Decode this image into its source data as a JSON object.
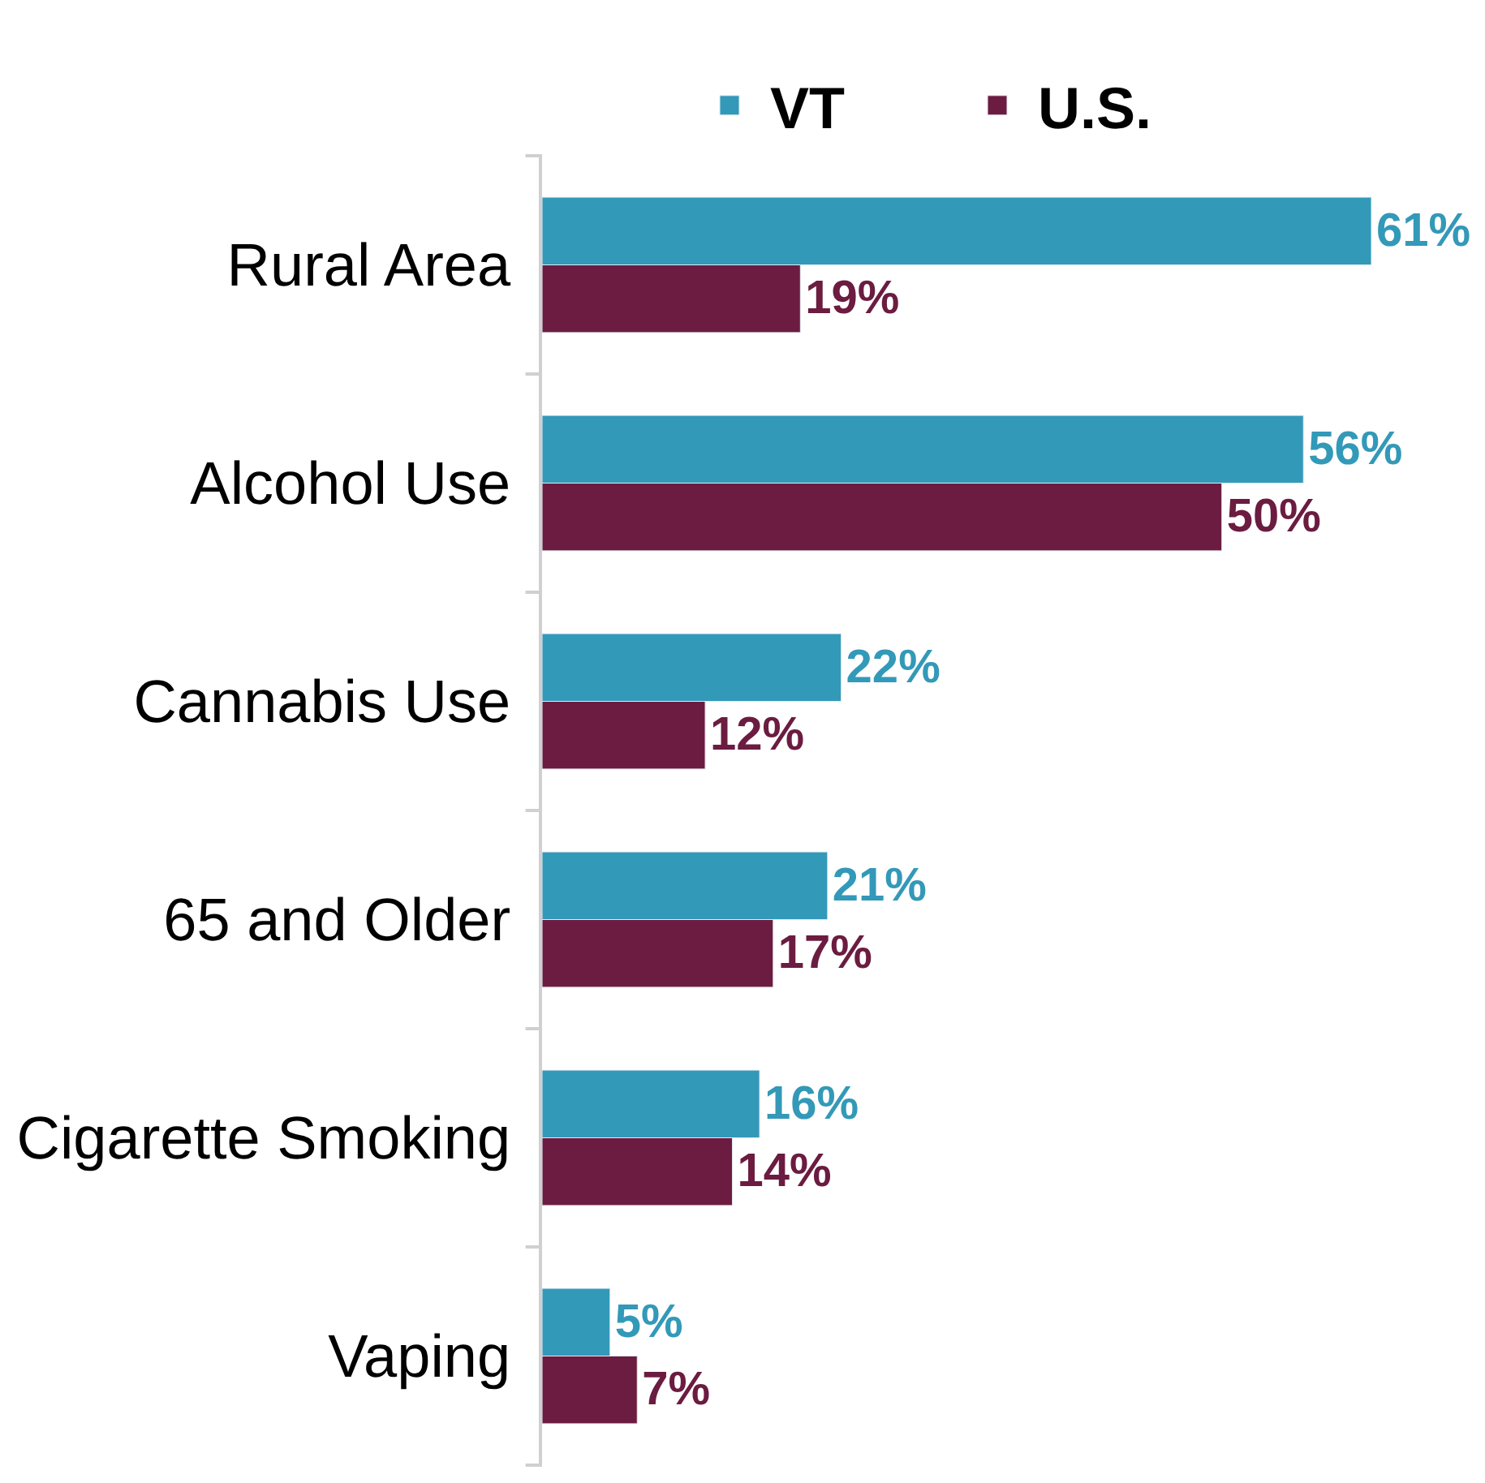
{
  "chart_data": {
    "type": "bar",
    "orientation": "horizontal",
    "legend": "top",
    "tick_labels": "y",
    "categories": [
      "Rural Area",
      "Alcohol Use",
      "Cannabis Use",
      "65 and Older",
      "Cigarette Smoking",
      "Vaping"
    ],
    "series": [
      {
        "name": "VT",
        "color": "#3399b8",
        "values": [
          61,
          56,
          22,
          21,
          16,
          5
        ],
        "value_labels": [
          "61%",
          "56%",
          "22%",
          "21%",
          "16%",
          "5%"
        ]
      },
      {
        "name": "U.S.",
        "color": "#6b1c40",
        "values": [
          19,
          50,
          12,
          17,
          14,
          7
        ],
        "value_labels": [
          "19%",
          "50%",
          "12%",
          "17%",
          "14%",
          "7%"
        ]
      }
    ]
  }
}
